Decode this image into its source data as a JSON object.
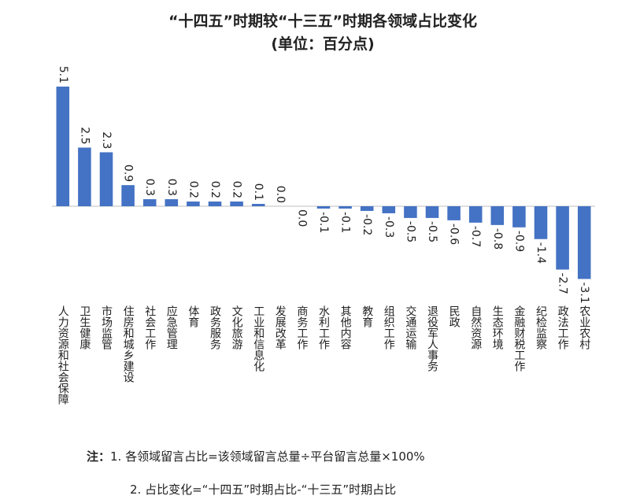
{
  "chart_data": {
    "type": "bar",
    "title": "“十四五”时期较“十三五”时期各领域占比变化",
    "subtitle": "(单位：百分点)",
    "categories": [
      "人力资源和社会保障",
      "卫生健康",
      "市场监管",
      "住房和城乡建设",
      "社会工作",
      "应急管理",
      "体育",
      "政务服务",
      "文化旅游",
      "工业和信息化",
      "发展改革",
      "商务工作",
      "水利工作",
      "其他内容",
      "教育",
      "组织工作",
      "交通运输",
      "退役军人事务",
      "民政",
      "自然资源",
      "生态环境",
      "金融财税工作",
      "纪检监察",
      "政法工作",
      "农业农村"
    ],
    "values": [
      5.1,
      2.5,
      2.3,
      0.9,
      0.3,
      0.3,
      0.2,
      0.2,
      0.2,
      0.1,
      0.0,
      0.0,
      -0.1,
      -0.1,
      -0.2,
      -0.3,
      -0.5,
      -0.5,
      -0.6,
      -0.7,
      -0.8,
      -0.9,
      -1.4,
      -2.7,
      -3.1
    ],
    "value_labels": [
      "5.1",
      "2.5",
      "2.3",
      "0.9",
      "0.3",
      "0.3",
      "0.2",
      "0.2",
      "0.2",
      "0.1",
      "0.0",
      "0.0",
      "-0.1",
      "-0.1",
      "-0.2",
      "-0.3",
      "-0.5",
      "-0.5",
      "-0.6",
      "-0.7",
      "-0.8",
      "-0.9",
      "-1.4",
      "-2.7",
      "-3.1"
    ],
    "color": "#4472c4",
    "note_label": "注：",
    "notes": [
      "1. 各领域留言占比=该领域留言总量÷平台留言总量×100%",
      "2. 占比变化=“十四五”时期占比-“十三五”时期占比"
    ]
  }
}
